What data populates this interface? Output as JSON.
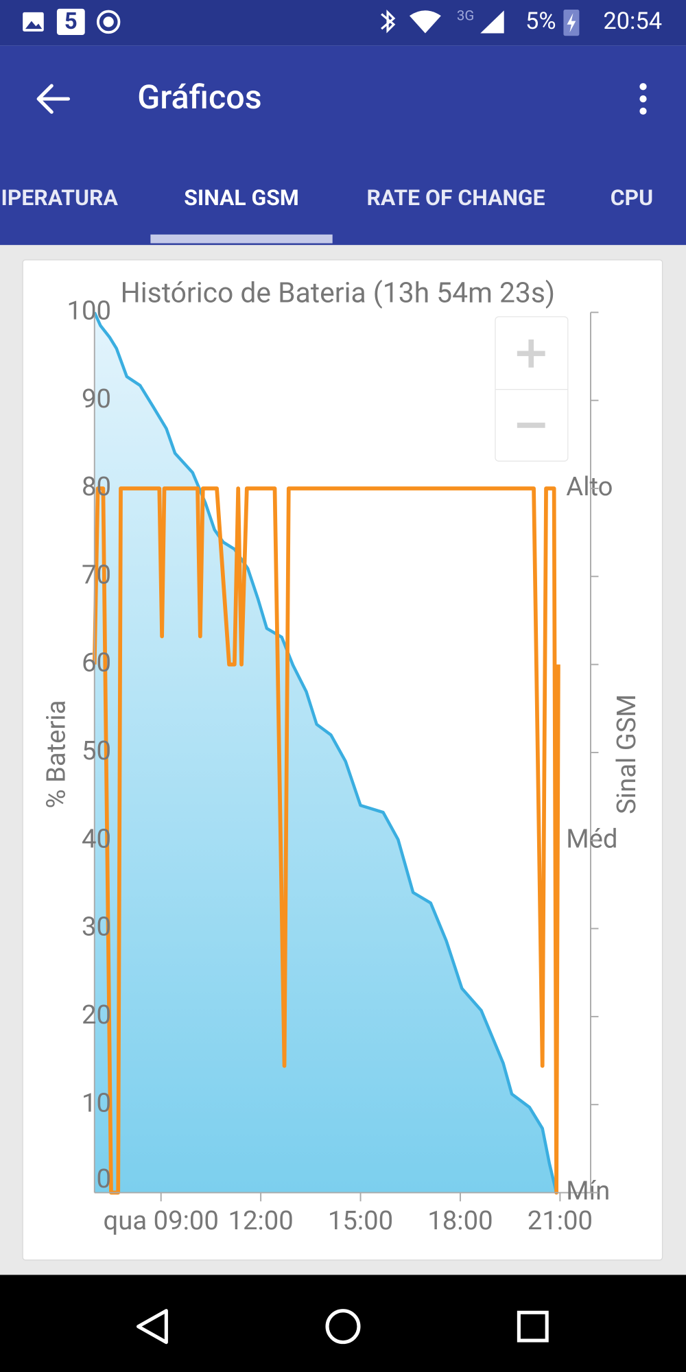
{
  "status_bar": {
    "notification_count": "5",
    "network": "3G",
    "battery": "5%",
    "time": "20:54"
  },
  "app_bar": {
    "title": "Gráficos"
  },
  "tabs": {
    "items": [
      "IPERATURA",
      "SINAL GSM",
      "RATE OF CHANGE",
      "CPU"
    ],
    "selected": 1
  },
  "chart_data": {
    "type": "line",
    "title": "Histórico de Bateria (13h 54m 23s)",
    "y_label": "% Bateria",
    "y2_label": "Sinal GSM",
    "xlim": [
      7,
      21.92
    ],
    "xticks": [
      {
        "value": 9,
        "label": "qua 09:00"
      },
      {
        "value": 12,
        "label": "12:00"
      },
      {
        "value": 15,
        "label": "15:00"
      },
      {
        "value": 18,
        "label": "18:00"
      },
      {
        "value": 21,
        "label": "21:00"
      }
    ],
    "ylim": [
      0,
      100
    ],
    "yticks": [
      0,
      10,
      20,
      30,
      40,
      50,
      60,
      70,
      80,
      90,
      100
    ],
    "y2lim": [
      0,
      2.5
    ],
    "y2ticks": [
      {
        "value": 0,
        "label": "Mín"
      },
      {
        "value": 1,
        "label": "Méd"
      },
      {
        "value": 2,
        "label": "Alto"
      }
    ],
    "series": [
      {
        "name": "Bateria",
        "color": "#3aaee0",
        "fill": true,
        "x": [
          7,
          7.18,
          7.45,
          7.66,
          7.97,
          8.37,
          8.76,
          9.16,
          9.42,
          9.95,
          10.34,
          10.61,
          10.87,
          11.21,
          11.61,
          11.92,
          12.18,
          12.63,
          12.97,
          13.37,
          13.68,
          14.11,
          14.55,
          15,
          15.68,
          16.13,
          16.58,
          17.11,
          17.58,
          18.05,
          18.63,
          19.29,
          19.55,
          20.08,
          20.47,
          20.68,
          20.89
        ],
        "values": [
          100,
          98.5,
          97.2,
          95.9,
          92.7,
          91.7,
          89.3,
          86.8,
          84,
          81.8,
          78.3,
          75.3,
          73.9,
          73.1,
          70.9,
          67.4,
          64.1,
          63.1,
          59.9,
          56.9,
          53.2,
          52,
          49,
          44,
          43.2,
          40.1,
          34.1,
          32.9,
          28.6,
          23.2,
          20.7,
          14.7,
          11.2,
          9.7,
          7.3,
          3.3,
          0
        ]
      },
      {
        "name": "Sinal GSM",
        "color": "#f7901e",
        "axis": "y2",
        "x": [
          7,
          7.1,
          7.26,
          7.5,
          7.71,
          7.79,
          8.95,
          9.03,
          9.1,
          10.1,
          10.18,
          10.26,
          10.68,
          11.05,
          11.21,
          11.32,
          11.42,
          11.58,
          12.42,
          12.71,
          12.84,
          20.21,
          20.47,
          20.58,
          20.82,
          20.89,
          20.95
        ],
        "values": [
          1.5,
          2,
          2,
          0,
          0,
          2,
          2,
          1.58,
          2,
          2,
          1.58,
          2,
          2,
          1.5,
          1.5,
          2,
          1.5,
          2,
          2,
          0.36,
          2,
          2,
          0.36,
          2,
          2,
          0,
          1.5
        ]
      }
    ]
  }
}
